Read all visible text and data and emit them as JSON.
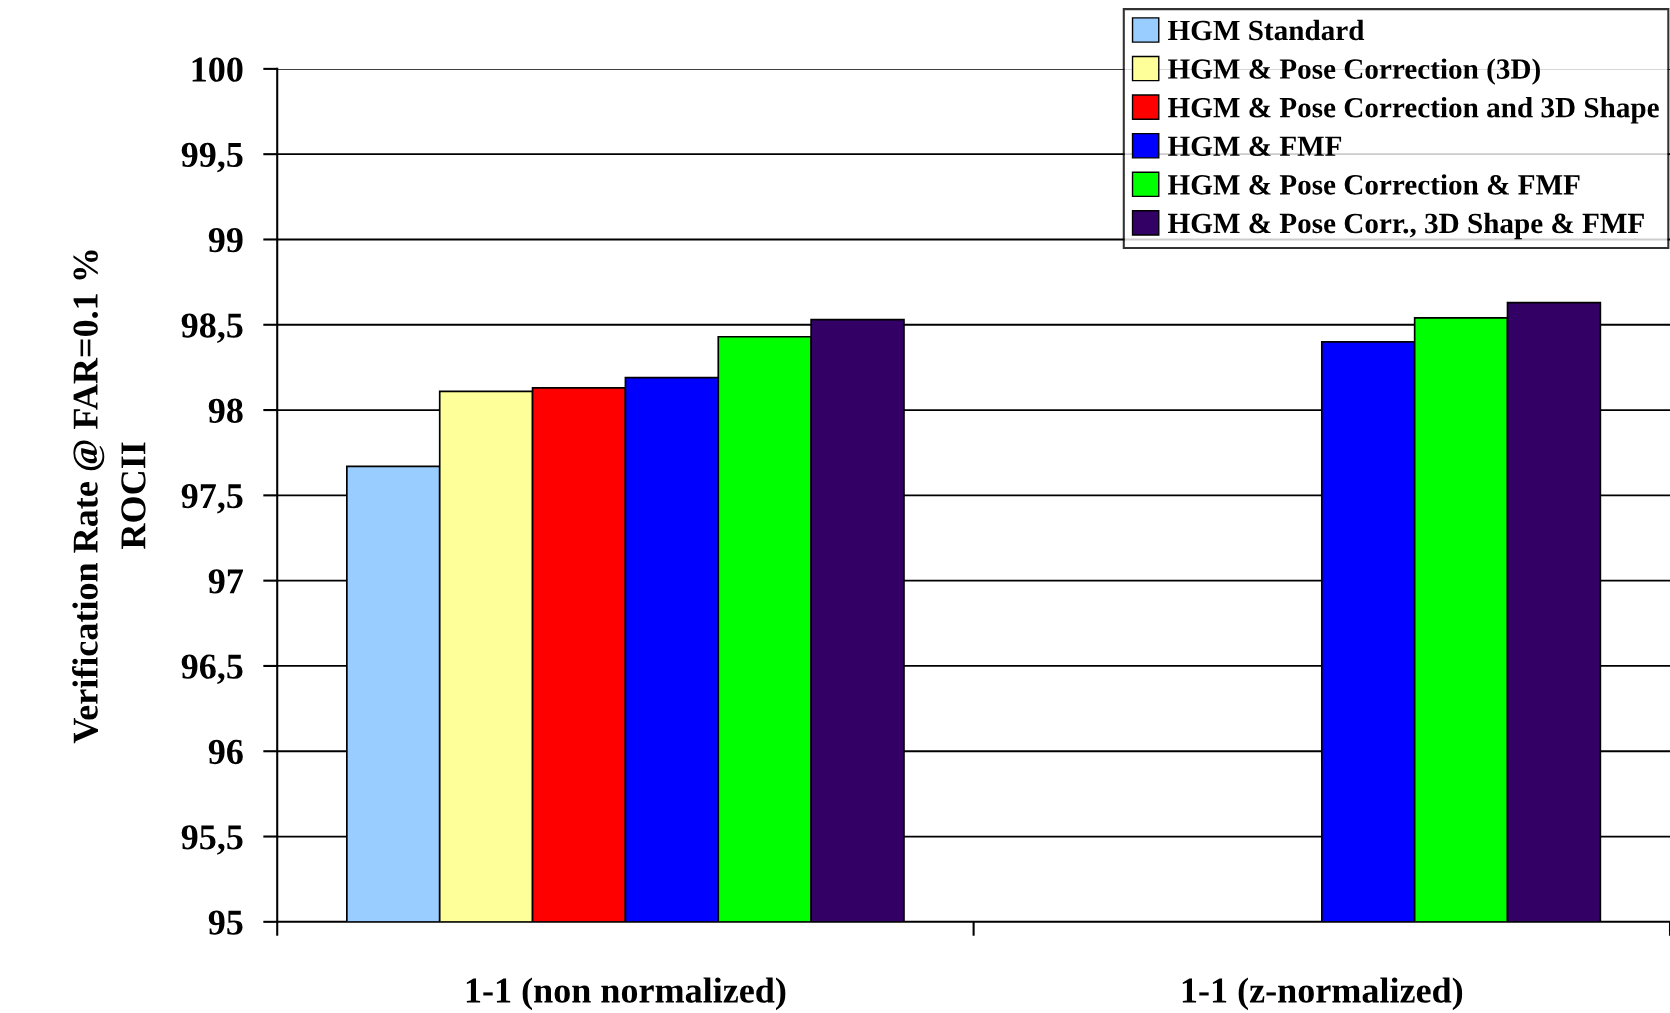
{
  "chart_data": {
    "type": "bar",
    "categories": [
      "1-1 (non normalized)",
      "1-1 (z-normalized)"
    ],
    "ylabel": "Verification Rate @ FAR=0.1 %\nROCII",
    "series": [
      {
        "name": "HGM Standard",
        "color": "#99ccff",
        "values": [
          97.67,
          null
        ]
      },
      {
        "name": "HGM & Pose Correction (3D)",
        "color": "#ffff99",
        "values": [
          98.11,
          null
        ]
      },
      {
        "name": "HGM & Pose Correction and 3D Shape",
        "color": "#ff0000",
        "values": [
          98.13,
          null
        ]
      },
      {
        "name": "HGM & FMF",
        "color": "#0000ff",
        "values": [
          98.19,
          98.4
        ]
      },
      {
        "name": "HGM & Pose Correction & FMF",
        "color": "#00ff00",
        "values": [
          98.43,
          98.54
        ]
      },
      {
        "name": "HGM & Pose Corr., 3D Shape & FMF",
        "color": "#330066",
        "values": [
          98.53,
          98.63
        ]
      }
    ],
    "ylim": [
      95,
      100
    ],
    "yticks": [
      95,
      {
        "value": 95.5,
        "label": "95,5"
      },
      96,
      {
        "value": 96.5,
        "label": "96,5"
      },
      97,
      {
        "value": 97.5,
        "label": "97,5"
      },
      98,
      {
        "value": 98.5,
        "label": "98,5"
      },
      99,
      {
        "value": 99.5,
        "label": "99,5"
      },
      100
    ],
    "grid": "y",
    "legend": "top right"
  }
}
